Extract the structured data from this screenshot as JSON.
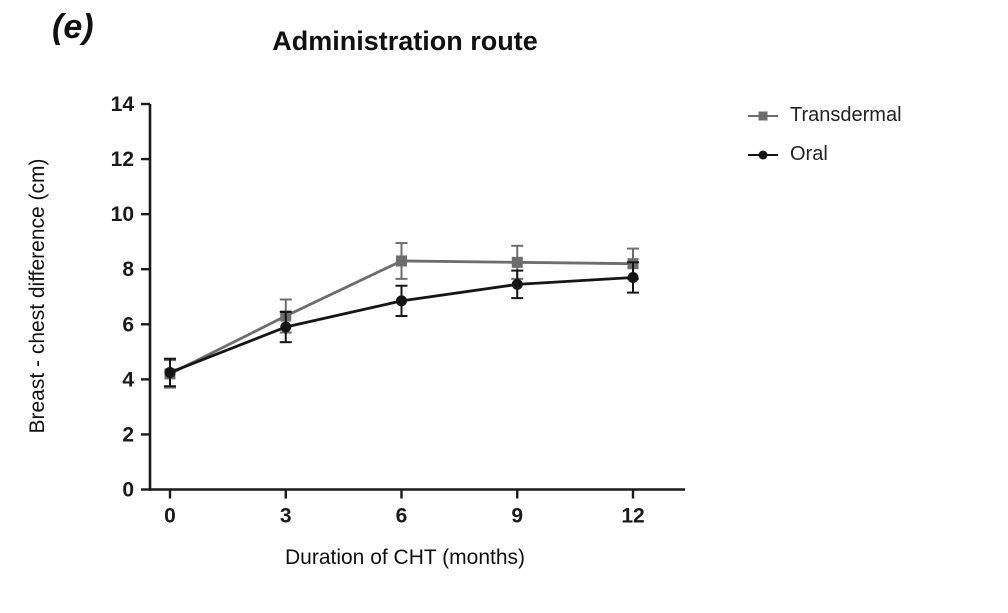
{
  "panel_label": "(e)",
  "chart_data": {
    "type": "line",
    "title": "Administration route",
    "xlabel": "Duration of CHT (months)",
    "ylabel": "Breast - chest difference (cm)",
    "x": [
      0,
      3,
      6,
      9,
      12
    ],
    "xticks": [
      0,
      3,
      6,
      9,
      12
    ],
    "yticks": [
      0,
      2,
      4,
      6,
      8,
      10,
      12,
      14
    ],
    "xlim": [
      0,
      12
    ],
    "ylim": [
      0,
      14
    ],
    "grid": false,
    "legend_position": "right",
    "axis_color": "#1a1a1a",
    "series": [
      {
        "name": "Transdermal",
        "marker": "square",
        "color": "#6d6d6d",
        "values": [
          4.2,
          6.3,
          8.3,
          8.25,
          8.2
        ],
        "error": [
          0.5,
          0.6,
          0.65,
          0.6,
          0.55
        ]
      },
      {
        "name": "Oral",
        "marker": "circle",
        "color": "#151515",
        "values": [
          4.25,
          5.9,
          6.85,
          7.45,
          7.7
        ],
        "error": [
          0.5,
          0.55,
          0.55,
          0.5,
          0.55
        ]
      }
    ]
  }
}
